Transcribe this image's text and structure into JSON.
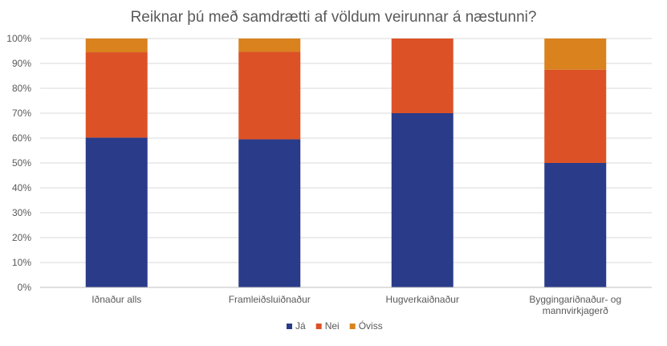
{
  "chart_data": {
    "type": "bar",
    "stacked": true,
    "title": "Reiknar þú með samdrætti af völdum veirunnar á næstunni?",
    "categories": [
      [
        "Iðnaður alls"
      ],
      [
        "Framleiðsluiðnaður"
      ],
      [
        "Hugverkaiðnaður"
      ],
      [
        "Byggingariðnaður- og",
        "mannvirkjagerð"
      ]
    ],
    "series": [
      {
        "name": "Já",
        "color": "#2a3b8a",
        "values": [
          60.2,
          59.5,
          70.0,
          50.0
        ]
      },
      {
        "name": "Nei",
        "color": "#dc5226",
        "values": [
          34.3,
          35.2,
          30.0,
          37.5
        ]
      },
      {
        "name": "Óviss",
        "color": "#d9821e",
        "values": [
          5.5,
          5.3,
          0.0,
          12.5
        ]
      }
    ],
    "ylim": [
      0,
      100
    ],
    "yticks": [
      "0%",
      "10%",
      "20%",
      "30%",
      "40%",
      "50%",
      "60%",
      "70%",
      "80%",
      "90%",
      "100%"
    ],
    "grid": true,
    "legend": "bottom"
  }
}
